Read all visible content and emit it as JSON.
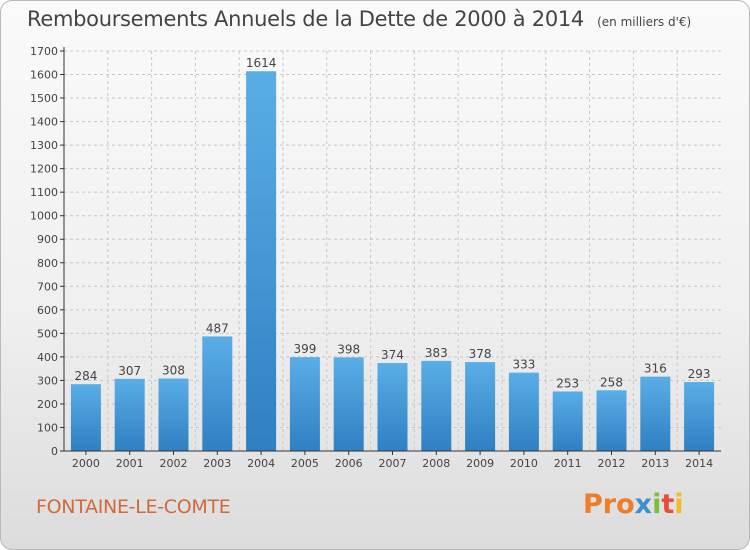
{
  "header": {
    "title": "Remboursements Annuels de la Dette de 2000 à 2014",
    "subtitle": "(en milliers d'€)"
  },
  "footer": {
    "commune": "FONTAINE-LE-COMTE",
    "brand_parts": [
      "Pro",
      "x",
      "i",
      "t",
      "i"
    ]
  },
  "colors": {
    "bar_top": "#5aaee6",
    "bar_bottom": "#2f7fc3",
    "axis": "#333333",
    "grid": "#c8c8c8",
    "text": "#444444"
  },
  "chart_data": {
    "type": "bar",
    "categories": [
      "2000",
      "2001",
      "2002",
      "2003",
      "2004",
      "2005",
      "2006",
      "2007",
      "2008",
      "2009",
      "2010",
      "2011",
      "2012",
      "2013",
      "2014"
    ],
    "values": [
      284,
      307,
      308,
      487,
      1614,
      399,
      398,
      374,
      383,
      378,
      333,
      253,
      258,
      316,
      293
    ],
    "ylim": [
      0,
      1700
    ],
    "yticks": [
      0,
      100,
      200,
      300,
      400,
      500,
      600,
      700,
      800,
      900,
      1000,
      1100,
      1200,
      1300,
      1400,
      1500,
      1600,
      1700
    ],
    "grid": true,
    "data_labels": true
  }
}
